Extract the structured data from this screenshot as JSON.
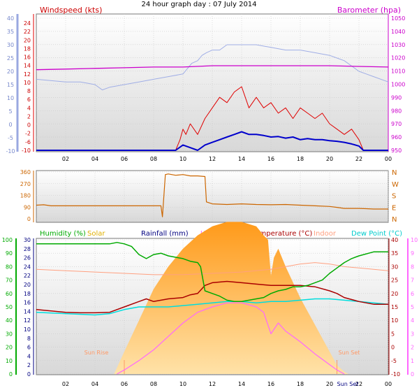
{
  "title": "24 hour graph day : 07 July 2014",
  "x_tick_labels": [
    "02",
    "04",
    "06",
    "08",
    "10",
    "12",
    "14",
    "16",
    "18",
    "20",
    "22",
    "00"
  ],
  "colors": {
    "wind": "#e00000",
    "gust_avg": "#0000cc",
    "barometer": "#cc00cc",
    "temp_left_axis": "#9aa8e0",
    "direction": "#cc6600",
    "humidity": "#00aa00",
    "solar": "#ffb040",
    "rainfall": "#000080",
    "uv": "#ff66ff",
    "temperature": "#aa0000",
    "indoor": "#ffa080",
    "dewpoint": "#00dddd"
  },
  "chart_data": [
    {
      "type": "line",
      "name": "top",
      "left_title": "Windspeed (kts)",
      "right_title": "Barometer (hpa)",
      "left_outer_ticks": [
        "40",
        "35",
        "30",
        "25",
        "20",
        "15",
        "10",
        "5",
        "0",
        "-5",
        "-10"
      ],
      "left_inner_ticks": [
        "24",
        "22",
        "20",
        "18",
        "16",
        "14",
        "12",
        "10",
        "8",
        "6",
        "4",
        "2",
        "0",
        "-2",
        "-6",
        "-10"
      ],
      "right_ticks": [
        "1050",
        "1040",
        "1030",
        "1020",
        "1010",
        "1000",
        "990",
        "980",
        "970",
        "960",
        "950"
      ],
      "xlim": [
        0,
        24
      ],
      "series": [
        {
          "key": "temp_outer",
          "x": [
            0,
            2,
            3,
            4,
            4.5,
            5,
            6,
            7,
            8,
            9,
            10,
            10.3,
            10.6,
            11,
            11.3,
            11.6,
            12,
            12.5,
            13,
            14,
            15,
            16,
            17,
            18,
            19,
            20,
            20.5,
            21,
            21.5,
            22,
            22.5,
            23,
            24
          ],
          "y": [
            17,
            16,
            16,
            15,
            13,
            14,
            15,
            16,
            17,
            18,
            19,
            21,
            23,
            24,
            26,
            27,
            28,
            28,
            30,
            30,
            30,
            29,
            28,
            28,
            27,
            26,
            25,
            24,
            22,
            20,
            19,
            18,
            16
          ]
        },
        {
          "key": "barometer",
          "x": [
            0,
            2,
            4,
            6,
            8,
            10,
            12,
            14,
            16,
            18,
            20,
            22,
            24
          ],
          "y": [
            1011,
            1011.5,
            1012,
            1012.5,
            1013,
            1013,
            1014,
            1014,
            1014,
            1014,
            1014,
            1013.5,
            1013
          ]
        },
        {
          "key": "gust",
          "x": [
            0,
            9.5,
            9.8,
            10,
            10.2,
            10.5,
            11,
            11.5,
            12,
            12.5,
            13,
            13.5,
            14,
            14.5,
            15,
            15.5,
            16,
            16.5,
            17,
            17.5,
            18,
            18.5,
            19,
            19.5,
            20,
            20.5,
            21,
            21.5,
            22,
            22.3,
            22.6,
            24
          ],
          "y": [
            0,
            0,
            2,
            4,
            3,
            5,
            3,
            6,
            8,
            10,
            9,
            11,
            12,
            8,
            10,
            8,
            9,
            7,
            8,
            6,
            8,
            7,
            6,
            7,
            5,
            4,
            3,
            4,
            2,
            0,
            0,
            0
          ]
        },
        {
          "key": "wind_avg",
          "x": [
            0,
            9.5,
            10,
            10.5,
            11,
            11.5,
            12,
            12.5,
            13,
            13.5,
            14,
            14.5,
            15,
            15.5,
            16,
            16.5,
            17,
            17.5,
            18,
            18.5,
            19,
            19.5,
            20,
            20.5,
            21,
            21.5,
            22,
            22.3,
            24
          ],
          "y": [
            0,
            0,
            1,
            0.5,
            0,
            1,
            1.5,
            2,
            2.5,
            3,
            3.5,
            3,
            3,
            2.8,
            2.5,
            2.6,
            2.3,
            2.5,
            2,
            2.2,
            2,
            2,
            1.8,
            1.7,
            1.5,
            1.2,
            0.8,
            0,
            0
          ]
        }
      ]
    },
    {
      "type": "line",
      "name": "direction",
      "left_ticks": [
        "360",
        "270",
        "180",
        "90",
        "0"
      ],
      "right_ticks": [
        "N",
        "W",
        "S",
        "E",
        "N"
      ],
      "ylim": [
        0,
        360
      ],
      "series": [
        {
          "key": "direction",
          "x": [
            0,
            0.5,
            1,
            2,
            3,
            4,
            5,
            6,
            7,
            8,
            8.5,
            8.6,
            8.8,
            9,
            9.5,
            10,
            10.5,
            11,
            11.5,
            11.6,
            12,
            13,
            14,
            15,
            16,
            17,
            18,
            19,
            20,
            20.5,
            21,
            22,
            22.5,
            23,
            24
          ],
          "y": [
            105,
            108,
            100,
            100,
            100,
            100,
            100,
            100,
            100,
            100,
            100,
            15,
            340,
            345,
            335,
            340,
            330,
            330,
            325,
            130,
            115,
            110,
            115,
            110,
            108,
            110,
            105,
            100,
            95,
            88,
            80,
            80,
            78,
            75,
            75
          ]
        }
      ]
    },
    {
      "type": "area",
      "name": "bottom",
      "labels": {
        "humidity": "Humidity (%)",
        "solar": "Solar",
        "rainfall": "Rainfall (mm)",
        "uv": "UV",
        "temperature": "Temperature (°C)",
        "indoor": "Indoor",
        "dewpoint": "Dew Point (°C)"
      },
      "humidity_ticks": [
        "100",
        "90",
        "80",
        "70",
        "60",
        "50",
        "40",
        "30",
        "20",
        "10",
        "0"
      ],
      "rain_ticks": [
        "30",
        "28",
        "26",
        "24",
        "22",
        "20",
        "18",
        "16",
        "14",
        "12",
        "10",
        "8",
        "6",
        "4",
        "2",
        "0"
      ],
      "temp_ticks": [
        "40",
        "35",
        "30",
        "25",
        "20",
        "15",
        "10",
        "5",
        "0",
        "-5",
        "-10"
      ],
      "uv_ticks": [
        "10",
        "9",
        "8",
        "7",
        "6",
        "5",
        "4",
        "3",
        "2",
        "1",
        "0"
      ],
      "sun_rise_label": "Sun Rise",
      "sun_set_label": "Sun Set",
      "sun_set_x_label": "Sun Set",
      "series": [
        {
          "key": "humidity",
          "x": [
            0,
            1,
            2,
            3,
            4,
            5,
            5.5,
            6,
            6.5,
            7,
            7.5,
            8,
            8.5,
            9,
            9.5,
            10,
            10.5,
            11,
            11.2,
            11.5,
            12,
            12.5,
            13,
            13.5,
            14,
            14.5,
            15,
            15.5,
            16,
            16.5,
            17,
            17.5,
            18,
            18.5,
            19,
            19.5,
            20,
            20.5,
            21,
            21.5,
            22,
            23,
            24
          ],
          "y": [
            97,
            97,
            97,
            97,
            97,
            97,
            98,
            97,
            95,
            89,
            86,
            89,
            90,
            88,
            87,
            86,
            84,
            83,
            80,
            62,
            60,
            58,
            55,
            54,
            54,
            55,
            56,
            57,
            60,
            62,
            63,
            65,
            65,
            66,
            68,
            70,
            75,
            79,
            83,
            86,
            88,
            91,
            91
          ]
        },
        {
          "key": "temperature",
          "x": [
            0,
            1,
            2,
            3,
            4,
            5,
            6,
            7,
            7.5,
            8,
            8.5,
            9,
            10,
            10.5,
            11,
            11.5,
            12,
            13,
            14,
            15,
            16,
            17,
            18,
            19,
            20,
            20.5,
            21,
            22,
            23,
            24
          ],
          "y": [
            14,
            13.5,
            13,
            12.8,
            12.8,
            13,
            15,
            17,
            18,
            17,
            17.5,
            18,
            18.5,
            19.5,
            20,
            23,
            24,
            24.5,
            24,
            23.5,
            23,
            23,
            23,
            22.5,
            21,
            20,
            18.5,
            17,
            16,
            16
          ]
        },
        {
          "key": "dewpoint",
          "x": [
            0,
            2,
            4,
            5,
            6,
            7,
            8,
            9,
            10,
            11,
            12,
            13,
            14,
            15,
            16,
            17,
            18,
            19,
            20,
            21,
            22,
            23,
            24
          ],
          "y": [
            13,
            12.5,
            12,
            12.5,
            14,
            15,
            15,
            15,
            15.5,
            16,
            16.5,
            17,
            17,
            16.5,
            17,
            17,
            17.5,
            18,
            18,
            17.5,
            17,
            16.5,
            16
          ]
        },
        {
          "key": "indoor",
          "x": [
            0,
            2,
            4,
            6,
            8,
            10,
            12,
            14,
            16,
            17,
            18,
            19,
            20,
            21,
            22,
            23,
            24
          ],
          "y": [
            29,
            28.5,
            28,
            27.5,
            27,
            27,
            27.5,
            28,
            29,
            30,
            31,
            31.5,
            31,
            30,
            29.5,
            29,
            28.5
          ]
        },
        {
          "key": "solar",
          "x": [
            5.3,
            6,
            7,
            8,
            9,
            10,
            11,
            12,
            13,
            14,
            15,
            15.5,
            15.8,
            16,
            16.2,
            16.5,
            17,
            18,
            19,
            20,
            20.5,
            21,
            21.3
          ],
          "y": [
            0,
            5,
            12,
            19,
            24,
            28,
            31,
            33,
            34,
            34,
            33,
            31,
            30,
            22,
            26,
            28,
            24,
            17,
            11,
            5,
            2,
            0.5,
            0
          ]
        },
        {
          "key": "uv",
          "x": [
            5.5,
            6,
            7,
            8,
            9,
            10,
            11,
            12,
            13,
            14,
            15,
            15.5,
            16,
            16.5,
            17,
            18,
            19,
            20,
            20.5,
            21
          ],
          "y": [
            0,
            0.3,
            1,
            1.8,
            2.8,
            3.8,
            4.6,
            5,
            5.3,
            5.3,
            5,
            4.6,
            3,
            3.8,
            3.2,
            2.4,
            1.5,
            0.7,
            0.3,
            0
          ]
        }
      ]
    }
  ]
}
